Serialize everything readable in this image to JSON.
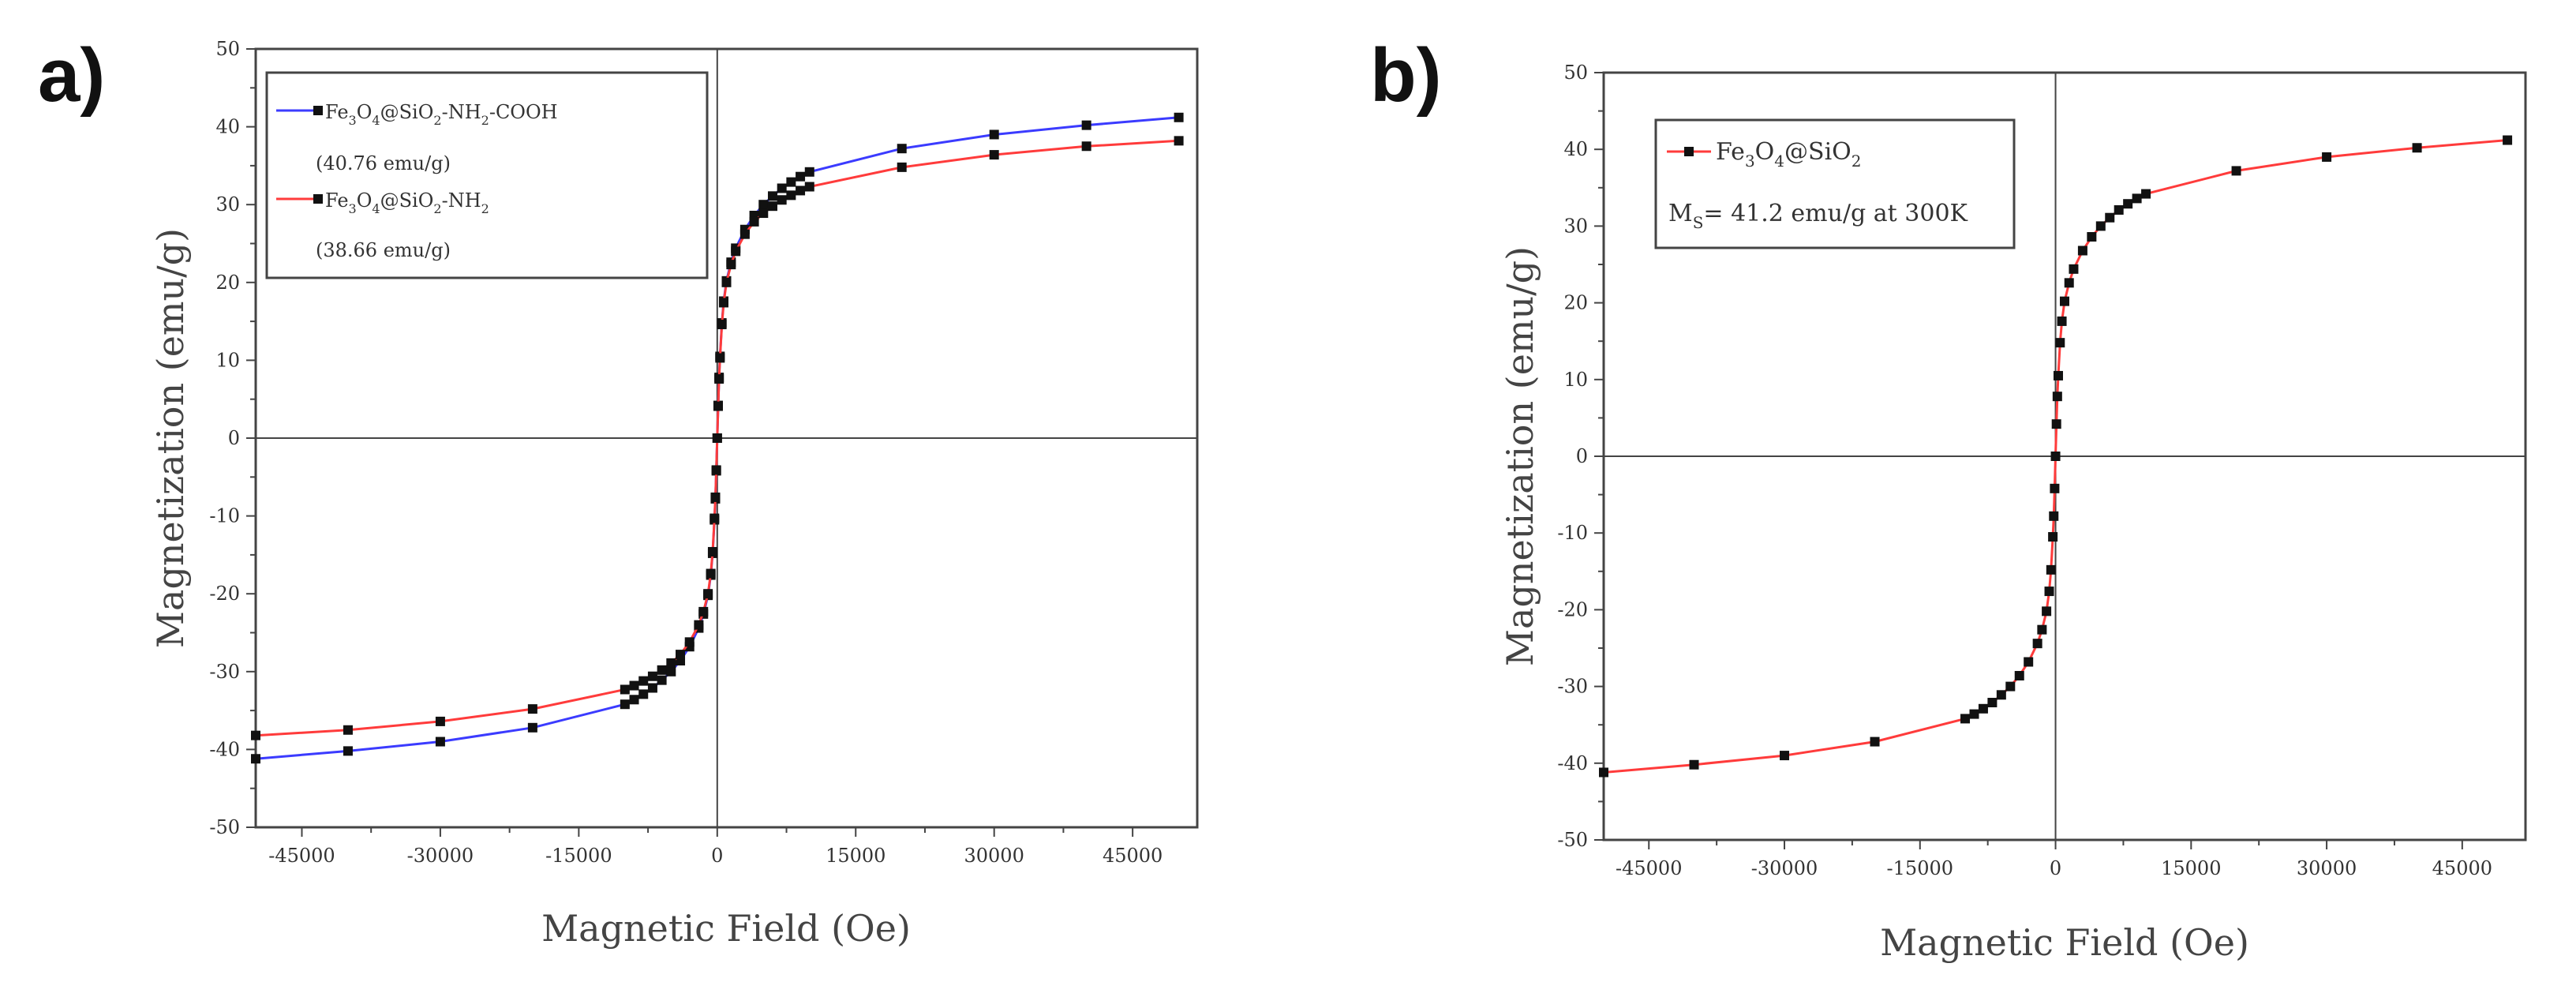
{
  "chart_data": [
    {
      "type": "line",
      "panel_label": "a)",
      "xlabel": "Magnetic Field (Oe)",
      "ylabel": "Magnetization (emu/g)",
      "xlim": [
        -50000,
        52000
      ],
      "ylim": [
        -50,
        50
      ],
      "xticks": [
        -45000,
        -30000,
        -15000,
        0,
        15000,
        30000,
        45000
      ],
      "yticks": [
        -50,
        -40,
        -30,
        -20,
        -10,
        0,
        10,
        20,
        30,
        40,
        50
      ],
      "grid": false,
      "legend": {
        "position": "top-left",
        "entries": [
          {
            "base": "Fe",
            "sub1": "3",
            "mid": "O",
            "sub2": "4",
            "tail": "@SiO",
            "sub3": "2",
            "tail2": "-NH",
            "sub4": "2",
            "tail3": "-COOH"
          },
          {
            "base": "Fe",
            "sub1": "3",
            "mid": "O",
            "sub2": "4",
            "tail": "@SiO",
            "sub3": "2",
            "tail2": "-NH",
            "sub4": "2",
            "tail3": ""
          }
        ],
        "notes": [
          "(40.76 emu/g)",
          "(38.66 emu/g)"
        ]
      },
      "series": [
        {
          "name": "Fe3O4@SiO2-NH2-COOH",
          "color": "#3b3bff",
          "ms": 40.76,
          "x": [
            -50000,
            -40000,
            -30000,
            -20000,
            -10000,
            -9000,
            -8000,
            -7000,
            -6000,
            -5000,
            -4000,
            -3000,
            -2000,
            -1500,
            -1000,
            -700,
            -500,
            -300,
            -200,
            -100,
            0,
            100,
            200,
            300,
            500,
            700,
            1000,
            1500,
            2000,
            3000,
            4000,
            5000,
            6000,
            7000,
            8000,
            9000,
            10000,
            20000,
            30000,
            40000,
            50000
          ],
          "y": [
            -41.2,
            -40.2,
            -39.0,
            -37.2,
            -34.2,
            -33.6,
            -32.9,
            -32.1,
            -31.1,
            -30.0,
            -28.6,
            -26.8,
            -24.4,
            -22.6,
            -20.2,
            -17.6,
            -14.8,
            -10.5,
            -7.8,
            -4.2,
            0,
            4.2,
            7.8,
            10.5,
            14.8,
            17.6,
            20.2,
            22.6,
            24.4,
            26.8,
            28.6,
            30.0,
            31.1,
            32.1,
            32.9,
            33.6,
            34.2,
            37.2,
            39.0,
            40.2,
            41.2
          ]
        },
        {
          "name": "Fe3O4@SiO2-NH2",
          "color": "#ff3b3b",
          "ms": 38.66,
          "x": [
            -50000,
            -40000,
            -30000,
            -20000,
            -10000,
            -9000,
            -8000,
            -7000,
            -6000,
            -5000,
            -4000,
            -3000,
            -2000,
            -1500,
            -1000,
            -700,
            -500,
            -300,
            -200,
            -100,
            0,
            100,
            200,
            300,
            500,
            700,
            1000,
            1500,
            2000,
            3000,
            4000,
            5000,
            6000,
            7000,
            8000,
            9000,
            10000,
            20000,
            30000,
            40000,
            50000
          ],
          "y": [
            -38.2,
            -37.5,
            -36.4,
            -34.8,
            -32.3,
            -31.8,
            -31.2,
            -30.6,
            -29.8,
            -28.9,
            -27.8,
            -26.2,
            -24.0,
            -22.3,
            -20.0,
            -17.4,
            -14.6,
            -10.3,
            -7.6,
            -4.1,
            0,
            4.1,
            7.6,
            10.3,
            14.6,
            17.4,
            20.0,
            22.3,
            24.0,
            26.2,
            27.8,
            28.9,
            29.8,
            30.6,
            31.2,
            31.8,
            32.3,
            34.8,
            36.4,
            37.5,
            38.2
          ]
        }
      ]
    },
    {
      "type": "line",
      "panel_label": "b)",
      "xlabel": "Magnetic Field (Oe)",
      "ylabel": "Magnetization (emu/g)",
      "xlim": [
        -50000,
        52000
      ],
      "ylim": [
        -50,
        50
      ],
      "xticks": [
        -45000,
        -30000,
        -15000,
        0,
        15000,
        30000,
        45000
      ],
      "yticks": [
        -50,
        -40,
        -30,
        -20,
        -10,
        0,
        10,
        20,
        30,
        40,
        50
      ],
      "grid": false,
      "legend": {
        "position": "top-left",
        "entries": [
          {
            "base": "Fe",
            "sub1": "3",
            "mid": "O",
            "sub2": "4",
            "tail": "@SiO",
            "sub3": "2"
          }
        ],
        "notes": [
          {
            "pre": "M",
            "sub": "S",
            "post": "= 41.2 emu/g at 300K"
          }
        ]
      },
      "series": [
        {
          "name": "Fe3O4@SiO2",
          "color": "#ff3b3b",
          "ms": 41.2,
          "x": [
            -50000,
            -40000,
            -30000,
            -20000,
            -10000,
            -9000,
            -8000,
            -7000,
            -6000,
            -5000,
            -4000,
            -3000,
            -2000,
            -1500,
            -1000,
            -700,
            -500,
            -300,
            -200,
            -100,
            0,
            100,
            200,
            300,
            500,
            700,
            1000,
            1500,
            2000,
            3000,
            4000,
            5000,
            6000,
            7000,
            8000,
            9000,
            10000,
            20000,
            30000,
            40000,
            50000
          ],
          "y": [
            -41.2,
            -40.2,
            -39.0,
            -37.2,
            -34.2,
            -33.6,
            -32.9,
            -32.1,
            -31.1,
            -30.0,
            -28.6,
            -26.8,
            -24.4,
            -22.6,
            -20.2,
            -17.6,
            -14.8,
            -10.5,
            -7.8,
            -4.2,
            0,
            4.2,
            7.8,
            10.5,
            14.8,
            17.6,
            20.2,
            22.6,
            24.4,
            26.8,
            28.6,
            30.0,
            31.1,
            32.1,
            32.9,
            33.6,
            34.2,
            37.2,
            39.0,
            40.2,
            41.2
          ]
        }
      ]
    }
  ]
}
